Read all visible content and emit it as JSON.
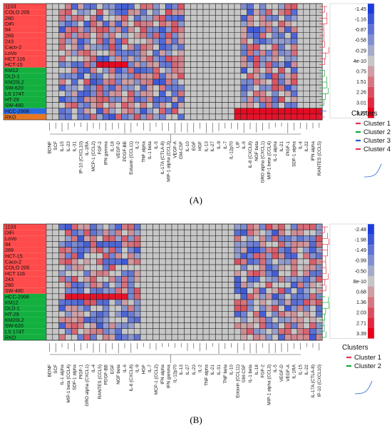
{
  "chart_data": [
    {
      "type": "heatmap",
      "panel_label": "(A)",
      "rows": [
        {
          "name": "1103",
          "cluster": 1
        },
        {
          "name": "COLO 205",
          "cluster": 1
        },
        {
          "name": "280",
          "cluster": 1
        },
        {
          "name": "DiFi",
          "cluster": 1
        },
        {
          "name": "94",
          "cluster": 1
        },
        {
          "name": "269",
          "cluster": 1
        },
        {
          "name": "243",
          "cluster": 1
        },
        {
          "name": "Caco-2",
          "cluster": 1
        },
        {
          "name": "LoVo",
          "cluster": 1
        },
        {
          "name": "HCT 116",
          "cluster": 1
        },
        {
          "name": "HCT-15",
          "cluster": 1
        },
        {
          "name": "KM12",
          "cluster": 2
        },
        {
          "name": "DLD-1",
          "cluster": 2
        },
        {
          "name": "KM20L2",
          "cluster": 2
        },
        {
          "name": "SW-620",
          "cluster": 2
        },
        {
          "name": "LS 174T",
          "cluster": 2
        },
        {
          "name": "HT-29",
          "cluster": 2
        },
        {
          "name": "SW-480",
          "cluster": 2
        },
        {
          "name": "HCC-2998",
          "cluster": 3
        },
        {
          "name": "RKO",
          "cluster": 4
        }
      ],
      "columns": [
        "BDNF",
        "SCF",
        "IL-15",
        "IL-23",
        "IL-31",
        "IP-10 (CXCL10)",
        "IL-1RA",
        "MCP-1 (CCL2)",
        "FGF-2",
        "IFN gamma",
        "IL-18",
        "VEGF-D",
        "PDGF-BB",
        "Eotaxin (CCL11)",
        "IL-2",
        "TNF alpha",
        "IL-1 beta",
        "IL-5",
        "IL-17A (CTLA-8)",
        "MIP-1 alpha (CCL3)",
        "VEGF-A",
        "GM-CSF",
        "IL-10",
        "EGF",
        "HGF",
        "IL-13",
        "IL-27",
        "IL-9",
        "IL-7",
        "IL-12p70",
        "LIF",
        "IL-6",
        "IL-8 (CXCL8)",
        "NGF beta",
        "GRO alpha (CXCL1)",
        "MIP-1 beta (CCL4)",
        "IL-1 alpha",
        "IL-21",
        "PlGF-1",
        "SDF-1 alpha",
        "IL-4",
        "IL-22",
        "IFN alpha",
        "RANTES (CCL5)"
      ],
      "color_scale": {
        "ticks": [
          "-1.45",
          "-1.16",
          "-0.87",
          "-0.58",
          "-0.29",
          "4e-10",
          "0.75",
          "1.51",
          "2.26",
          "3.01",
          "3.77"
        ],
        "low_color": "#1a3cdc",
        "mid_color": "#c6c6c6",
        "high_color": "#e8001a"
      },
      "legend": {
        "title": "Clusters",
        "items": [
          {
            "label": "Cluster 1",
            "color": "#e8334a"
          },
          {
            "label": "Cluster 2",
            "color": "#13a538"
          },
          {
            "label": "Cluster 3",
            "color": "#1e5bd6"
          },
          {
            "label": "Cluster 4",
            "color": "#e8334a"
          }
        ]
      },
      "row_label_colors": [
        "#ff4b4b",
        "#13b040",
        "#2a6ae0",
        "#e87722"
      ]
    },
    {
      "type": "heatmap",
      "panel_label": "(B)",
      "rows": [
        {
          "name": "1103",
          "cluster": 1
        },
        {
          "name": "DiFi",
          "cluster": 1
        },
        {
          "name": "LoVo",
          "cluster": 1
        },
        {
          "name": "94",
          "cluster": 1
        },
        {
          "name": "269",
          "cluster": 1
        },
        {
          "name": "HCT-15",
          "cluster": 1
        },
        {
          "name": "Caco-2",
          "cluster": 1
        },
        {
          "name": "COLO 205",
          "cluster": 1
        },
        {
          "name": "HCT 116",
          "cluster": 1
        },
        {
          "name": "243",
          "cluster": 1
        },
        {
          "name": "280",
          "cluster": 1
        },
        {
          "name": "SW-480",
          "cluster": 1
        },
        {
          "name": "HCC-2998",
          "cluster": 2
        },
        {
          "name": "KM12",
          "cluster": 2
        },
        {
          "name": "DLD-1",
          "cluster": 2
        },
        {
          "name": "HT-29",
          "cluster": 2
        },
        {
          "name": "KM20L2",
          "cluster": 2
        },
        {
          "name": "SW-620",
          "cluster": 2
        },
        {
          "name": "LS 174T",
          "cluster": 2
        },
        {
          "name": "RKO",
          "cluster": 2
        }
      ],
      "columns": [
        "BDNF",
        "SCF",
        "IL-1 alpha",
        "MIP-1 beta (CCL4)",
        "SDF-1 alpha",
        "PlGF-1",
        "GRO alpha (CXCL1)",
        "IL-4",
        "RANTES (CCL5)",
        "PDGF-BB",
        "EGF",
        "NGF beta",
        "IL-6",
        "IL-8 (CXCL8)",
        "IL-9",
        "HGF",
        "IL-7",
        "MCP-1 (CCL2)",
        "IFN alpha",
        "IFN gamma",
        "IL-12p70",
        "IL-13",
        "IL-27",
        "IL-23",
        "IL-2",
        "TNF alpha",
        "IL-21",
        "IL-31",
        "TNF beta",
        "IL-10",
        "Eotaxin (CCL11)",
        "GM-CSF",
        "IL-1 beta",
        "IL-18",
        "FGF-2",
        "MIP-1 alpha (CCL3)",
        "IL-5",
        "VEGF-D",
        "VEGF-A",
        "IL-1RA",
        "IL-15",
        "IL-22",
        "IL-17A (CTLA-8)",
        "IP-10 (CXCL10)"
      ],
      "color_scale": {
        "ticks": [
          "-2.48",
          "-1.98",
          "-1.49",
          "-0.99",
          "-0.50",
          "8e-10",
          "0.68",
          "1.36",
          "2.03",
          "2.71",
          "3.39"
        ],
        "low_color": "#1a3cdc",
        "mid_color": "#c6c6c6",
        "high_color": "#e8001a"
      },
      "legend": {
        "title": "Clusters",
        "items": [
          {
            "label": "Cluster 1",
            "color": "#e8334a"
          },
          {
            "label": "Cluster 2",
            "color": "#13a538"
          }
        ]
      },
      "row_label_colors": [
        "#ff4b4b",
        "#13b040"
      ]
    }
  ]
}
